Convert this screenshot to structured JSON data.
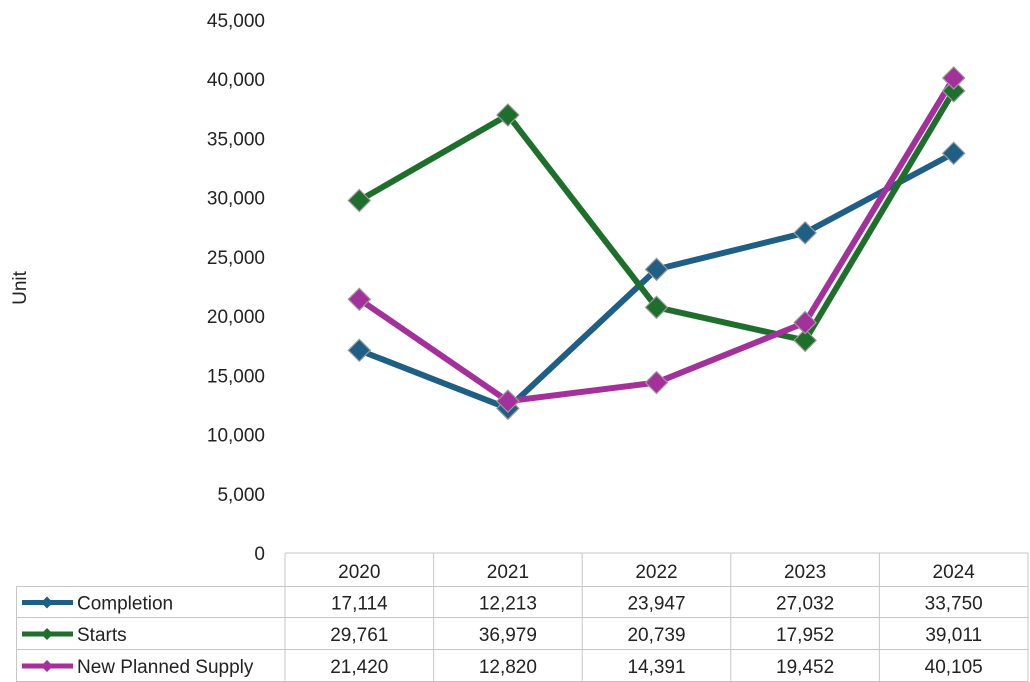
{
  "chart_data": {
    "type": "line",
    "ylabel": "Unit",
    "ylim": [
      0,
      45000
    ],
    "y_ticks": [
      "0",
      "5,000",
      "10,000",
      "15,000",
      "20,000",
      "25,000",
      "30,000",
      "35,000",
      "40,000",
      "45,000"
    ],
    "categories": [
      "2020",
      "2021",
      "2022",
      "2023",
      "2024"
    ],
    "series": [
      {
        "name": "Completion",
        "color": "#1F5F86",
        "values": [
          17114,
          12213,
          23947,
          27032,
          33750
        ],
        "labels": [
          "17,114",
          "12,213",
          "23,947",
          "27,032",
          "33,750"
        ]
      },
      {
        "name": "Starts",
        "color": "#1F6F2C",
        "values": [
          29761,
          36979,
          20739,
          17952,
          39011
        ],
        "labels": [
          "29,761",
          "36,979",
          "20,739",
          "17,952",
          "39,011"
        ]
      },
      {
        "name": "New Planned Supply",
        "color": "#A3309B",
        "values": [
          21420,
          12820,
          14391,
          19452,
          40105
        ],
        "labels": [
          "21,420",
          "12,820",
          "14,391",
          "19,452",
          "40,105"
        ]
      }
    ],
    "grid": false,
    "legend": "data-table-left",
    "marker": "diamond"
  }
}
